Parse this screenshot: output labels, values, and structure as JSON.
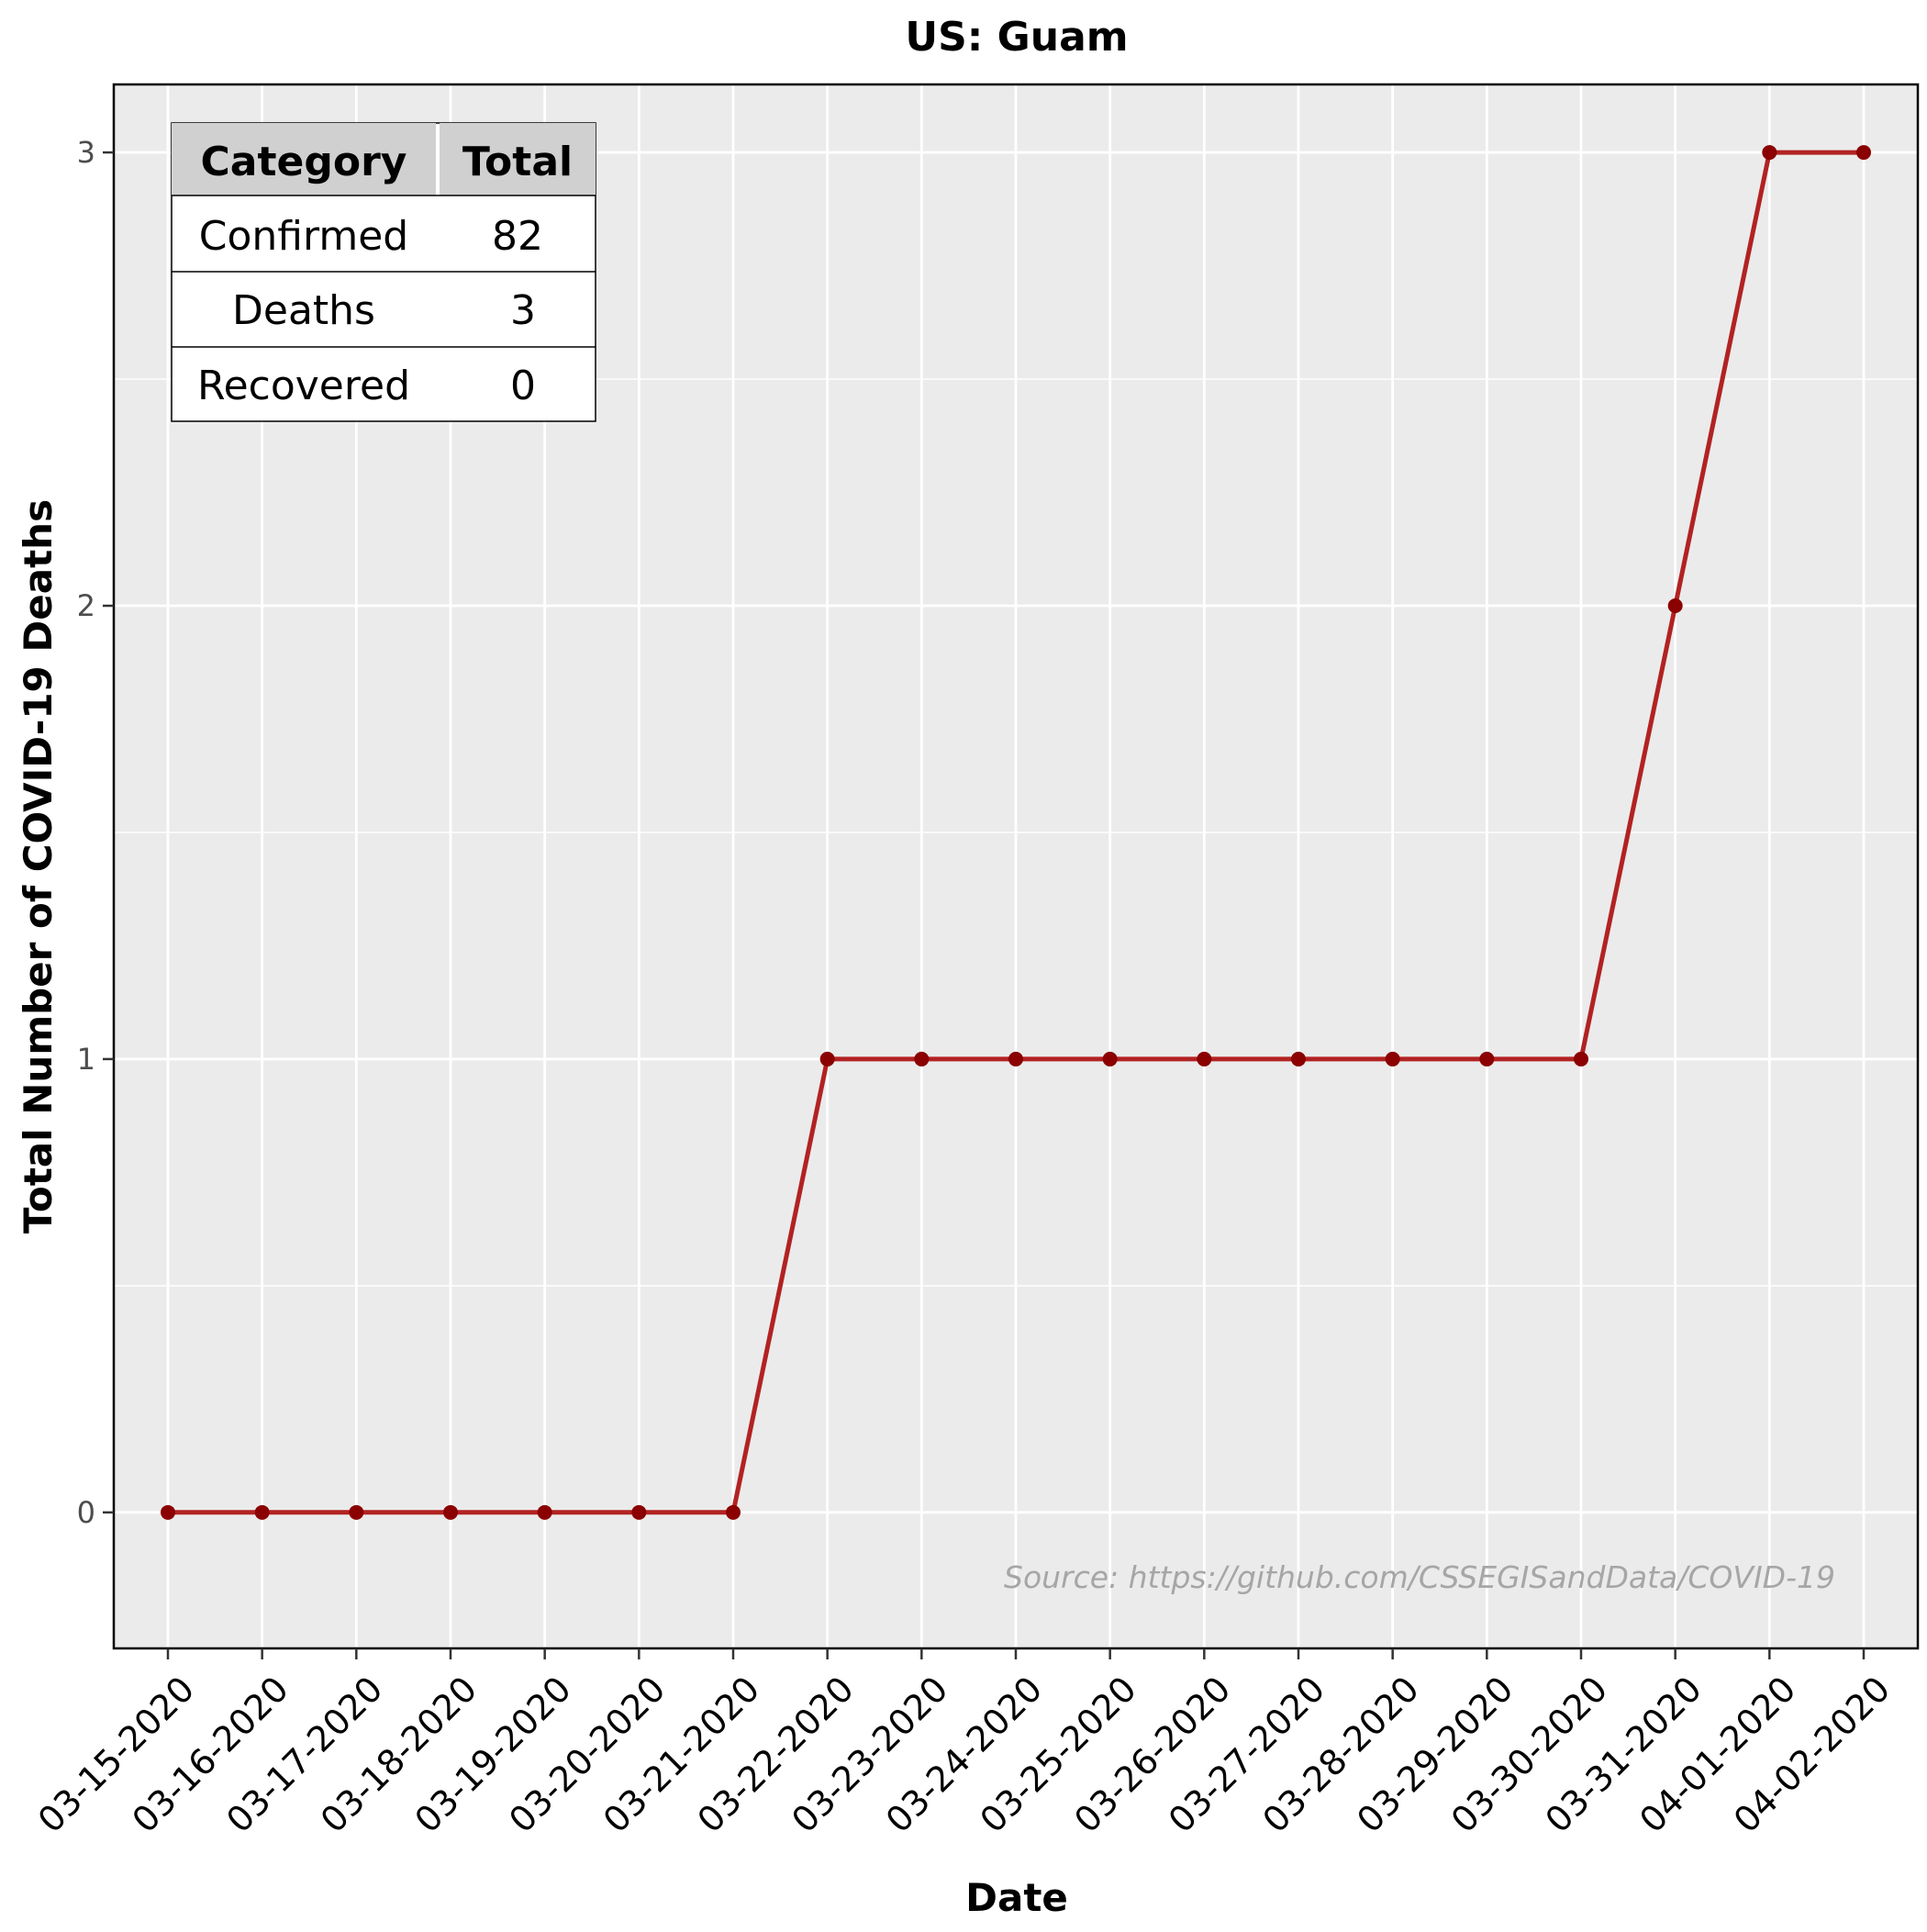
{
  "chart_data": {
    "type": "line",
    "title": "US: Guam",
    "xlabel": "Date",
    "ylabel": "Total Number of COVID-19 Deaths",
    "x": [
      "03-15-2020",
      "03-16-2020",
      "03-17-2020",
      "03-18-2020",
      "03-19-2020",
      "03-20-2020",
      "03-21-2020",
      "03-22-2020",
      "03-23-2020",
      "03-24-2020",
      "03-25-2020",
      "03-26-2020",
      "03-27-2020",
      "03-28-2020",
      "03-29-2020",
      "03-30-2020",
      "03-31-2020",
      "04-01-2020",
      "04-02-2020"
    ],
    "series": [
      {
        "values": [
          0,
          0,
          0,
          0,
          0,
          0,
          0,
          1,
          1,
          1,
          1,
          1,
          1,
          1,
          1,
          1,
          2,
          3,
          3
        ]
      }
    ],
    "ylim": [
      -0.3,
      3.15
    ],
    "yticks": [
      0,
      1,
      2,
      3
    ],
    "grid": true,
    "colors": {
      "line": "#B22222",
      "point": "#8B0000",
      "panel": "#EBEBEB",
      "grid": "#FFFFFF"
    },
    "summary_table": {
      "headers": [
        "Category",
        "Total"
      ],
      "rows": [
        [
          "Confirmed",
          "82"
        ],
        [
          "Deaths",
          "3"
        ],
        [
          "Recovered",
          "0"
        ]
      ],
      "placement": "top-left"
    },
    "annotation": "Source: https://github.com/CSSEGISandData/COVID-19"
  }
}
